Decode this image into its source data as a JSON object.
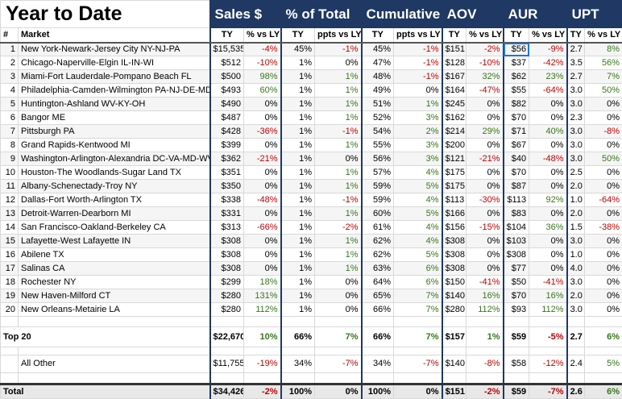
{
  "title": "Year to Date",
  "groups": [
    "Sales $",
    "% of Total",
    "Cumulative",
    "AOV",
    "AUR",
    "UPT"
  ],
  "columns": [
    "#",
    "Market",
    "TY",
    "% vs LY",
    "TY",
    "ppts vs LY",
    "TY",
    "ppts vs LY",
    "TY",
    "% vs LY",
    "TY",
    "% vs LY",
    "TY",
    "% vs LY"
  ],
  "rows": [
    [
      "1",
      "New York-Newark-Jersey City NY-NJ-PA",
      "$15,535",
      "-4%",
      "45%",
      "-1%",
      "45%",
      "-1%",
      "$151",
      "-2%",
      "$56",
      "-9%",
      "2.7",
      "8%"
    ],
    [
      "2",
      "Chicago-Naperville-Elgin IL-IN-WI",
      "$512",
      "-10%",
      "1%",
      "0%",
      "47%",
      "-1%",
      "$128",
      "-10%",
      "$37",
      "-42%",
      "3.5",
      "56%"
    ],
    [
      "3",
      "Miami-Fort Lauderdale-Pompano Beach FL",
      "$500",
      "98%",
      "1%",
      "1%",
      "48%",
      "-1%",
      "$167",
      "32%",
      "$62",
      "23%",
      "2.7",
      "7%"
    ],
    [
      "4",
      "Philadelphia-Camden-Wilmington PA-NJ-DE-MD",
      "$493",
      "60%",
      "1%",
      "1%",
      "49%",
      "0%",
      "$164",
      "-47%",
      "$55",
      "-64%",
      "3.0",
      "50%"
    ],
    [
      "5",
      "Huntington-Ashland WV-KY-OH",
      "$490",
      "0%",
      "1%",
      "1%",
      "51%",
      "1%",
      "$245",
      "0%",
      "$82",
      "0%",
      "3.0",
      "0%"
    ],
    [
      "6",
      "Bangor ME",
      "$487",
      "0%",
      "1%",
      "1%",
      "52%",
      "3%",
      "$162",
      "0%",
      "$70",
      "0%",
      "2.3",
      "0%"
    ],
    [
      "7",
      "Pittsburgh PA",
      "$428",
      "-36%",
      "1%",
      "-1%",
      "54%",
      "2%",
      "$214",
      "29%",
      "$71",
      "40%",
      "3.0",
      "-8%"
    ],
    [
      "8",
      "Grand Rapids-Kentwood MI",
      "$399",
      "0%",
      "1%",
      "1%",
      "55%",
      "3%",
      "$200",
      "0%",
      "$67",
      "0%",
      "3.0",
      "0%"
    ],
    [
      "9",
      "Washington-Arlington-Alexandria DC-VA-MD-WV",
      "$362",
      "-21%",
      "1%",
      "0%",
      "56%",
      "3%",
      "$121",
      "-21%",
      "$40",
      "-48%",
      "3.0",
      "50%"
    ],
    [
      "10",
      "Houston-The Woodlands-Sugar Land TX",
      "$351",
      "0%",
      "1%",
      "1%",
      "57%",
      "4%",
      "$175",
      "0%",
      "$70",
      "0%",
      "2.5",
      "0%"
    ],
    [
      "11",
      "Albany-Schenectady-Troy NY",
      "$350",
      "0%",
      "1%",
      "1%",
      "59%",
      "5%",
      "$175",
      "0%",
      "$87",
      "0%",
      "2.0",
      "0%"
    ],
    [
      "12",
      "Dallas-Fort Worth-Arlington TX",
      "$338",
      "-48%",
      "1%",
      "-1%",
      "59%",
      "4%",
      "$113",
      "-30%",
      "$113",
      "92%",
      "1.0",
      "-64%"
    ],
    [
      "13",
      "Detroit-Warren-Dearborn MI",
      "$331",
      "0%",
      "1%",
      "1%",
      "60%",
      "5%",
      "$166",
      "0%",
      "$83",
      "0%",
      "2.0",
      "0%"
    ],
    [
      "14",
      "San Francisco-Oakland-Berkeley CA",
      "$313",
      "-66%",
      "1%",
      "-2%",
      "61%",
      "4%",
      "$156",
      "-15%",
      "$104",
      "36%",
      "1.5",
      "-38%"
    ],
    [
      "15",
      "Lafayette-West Lafayette IN",
      "$308",
      "0%",
      "1%",
      "1%",
      "62%",
      "4%",
      "$308",
      "0%",
      "$103",
      "0%",
      "3.0",
      "0%"
    ],
    [
      "16",
      "Abilene TX",
      "$308",
      "0%",
      "1%",
      "1%",
      "62%",
      "5%",
      "$308",
      "0%",
      "$308",
      "0%",
      "1.0",
      "0%"
    ],
    [
      "17",
      "Salinas CA",
      "$308",
      "0%",
      "1%",
      "1%",
      "63%",
      "6%",
      "$308",
      "0%",
      "$77",
      "0%",
      "4.0",
      "0%"
    ],
    [
      "18",
      "Rochester NY",
      "$299",
      "18%",
      "1%",
      "0%",
      "64%",
      "6%",
      "$150",
      "-41%",
      "$50",
      "-41%",
      "3.0",
      "0%"
    ],
    [
      "19",
      "New Haven-Milford CT",
      "$280",
      "131%",
      "1%",
      "0%",
      "65%",
      "7%",
      "$140",
      "16%",
      "$70",
      "16%",
      "2.0",
      "0%"
    ],
    [
      "20",
      "New Orleans-Metairie LA",
      "$280",
      "112%",
      "1%",
      "0%",
      "66%",
      "7%",
      "$280",
      "112%",
      "$93",
      "112%",
      "3.0",
      "0%"
    ]
  ],
  "summary": [
    {
      "label": "Top 20",
      "cells": [
        "$22,670",
        "10%",
        "66%",
        "7%",
        "66%",
        "7%",
        "$157",
        "1%",
        "$59",
        "-5%",
        "2.7",
        "6%"
      ]
    },
    {
      "label": "All Other",
      "cells": [
        "$11,755",
        "-19%",
        "34%",
        "-7%",
        "34%",
        "-7%",
        "$140",
        "-8%",
        "$58",
        "-12%",
        "2.4",
        "5%"
      ]
    },
    {
      "label": "Total",
      "cells": [
        "$34,426",
        "-2%",
        "100%",
        "0%",
        "100%",
        "0%",
        "$151",
        "-2%",
        "$59",
        "-7%",
        "2.6",
        "6%"
      ]
    }
  ]
}
